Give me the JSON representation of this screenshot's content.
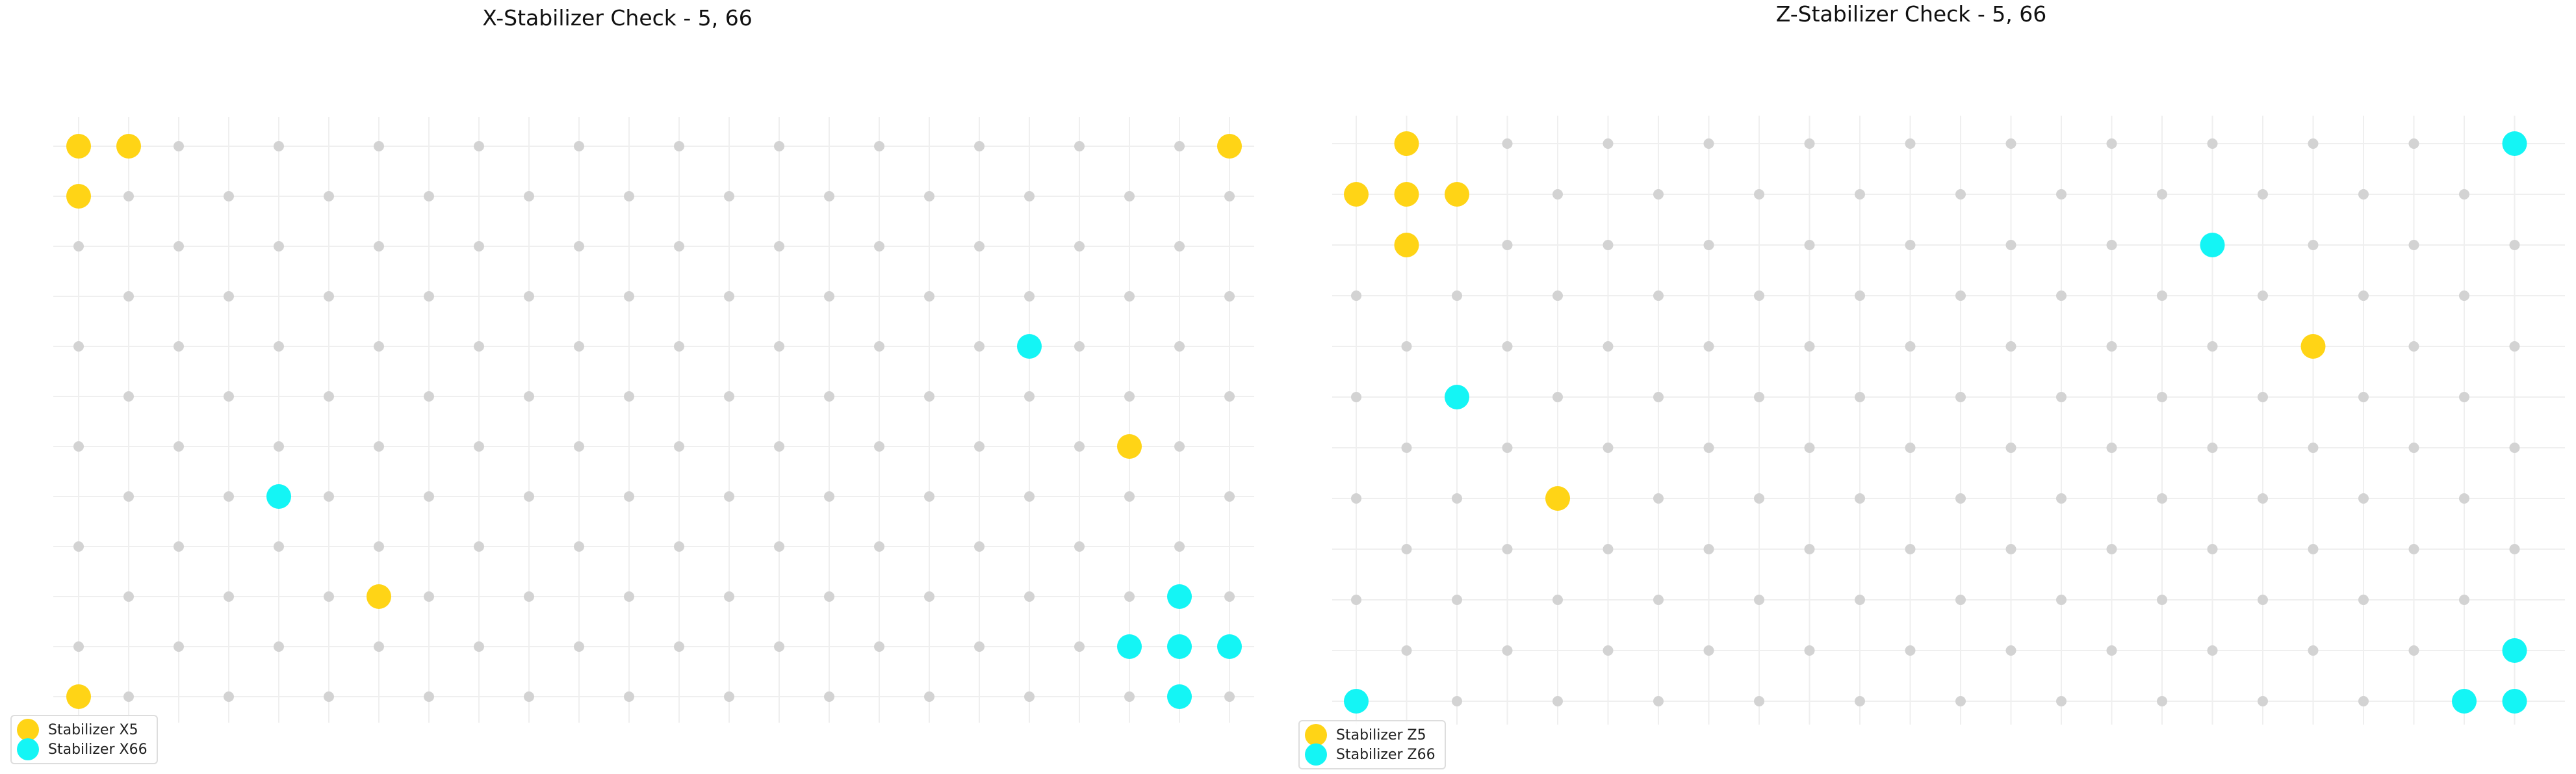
{
  "colors": {
    "dot": "#d3d3d3",
    "grid": "#efefef",
    "x5": "#ffd416",
    "x66": "#14f5f5"
  },
  "chart_data": [
    {
      "type": "scatter",
      "title": "X-Stabilizer Check - 5, 66",
      "grid": true,
      "legend_position": "lower-left",
      "lattice": {
        "cols": 24,
        "rows": 12,
        "pattern": "checkerboard-parity-0"
      },
      "series": [
        {
          "name": "Stabilizer X5",
          "color": "#ffd416",
          "points": [
            [
              0,
              0
            ],
            [
              1,
              0
            ],
            [
              23,
              0
            ],
            [
              0,
              1
            ],
            [
              21,
              6
            ],
            [
              6,
              9
            ],
            [
              0,
              11
            ]
          ]
        },
        {
          "name": "Stabilizer X66",
          "color": "#14f5f5",
          "points": [
            [
              19,
              4
            ],
            [
              4,
              7
            ],
            [
              22,
              9
            ],
            [
              21,
              10
            ],
            [
              22,
              10
            ],
            [
              23,
              10
            ],
            [
              22,
              11
            ]
          ]
        }
      ]
    },
    {
      "type": "scatter",
      "title": "Z-Stabilizer Check - 5, 66",
      "grid": true,
      "legend_position": "lower-left",
      "lattice": {
        "cols": 24,
        "rows": 12,
        "pattern": "checkerboard-parity-1"
      },
      "series": [
        {
          "name": "Stabilizer Z5",
          "color": "#ffd416",
          "points": [
            [
              1,
              0
            ],
            [
              0,
              1
            ],
            [
              1,
              1
            ],
            [
              2,
              1
            ],
            [
              1,
              2
            ],
            [
              19,
              4
            ],
            [
              4,
              7
            ]
          ]
        },
        {
          "name": "Stabilizer Z66",
          "color": "#14f5f5",
          "points": [
            [
              23,
              0
            ],
            [
              17,
              2
            ],
            [
              2,
              5
            ],
            [
              23,
              10
            ],
            [
              0,
              11
            ],
            [
              22,
              11
            ],
            [
              23,
              11
            ]
          ]
        }
      ]
    }
  ]
}
